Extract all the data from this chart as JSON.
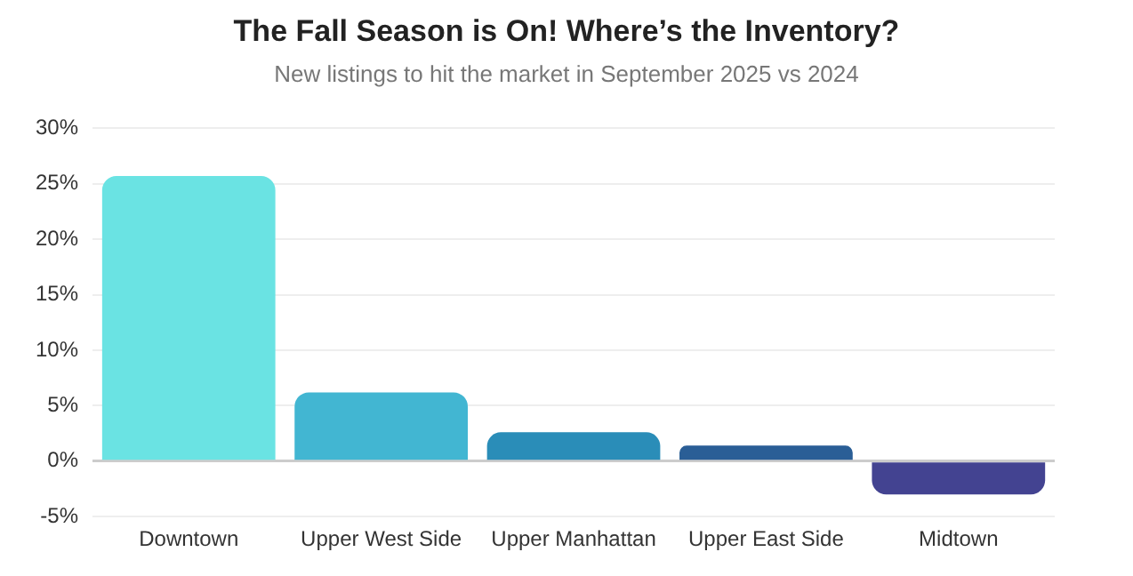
{
  "chart_data": {
    "type": "bar",
    "title": "The Fall Season is On! Where’s the Inventory?",
    "subtitle": "New listings to hit the market in September 2025 vs 2024",
    "categories": [
      "Downtown",
      "Upper West Side",
      "Upper Manhattan",
      "Upper East Side",
      "Midtown"
    ],
    "values": [
      25.7,
      6.2,
      2.6,
      1.4,
      -3.0
    ],
    "colors": [
      "#6ae3e3",
      "#42b6d2",
      "#2a8db8",
      "#2a5e96",
      "#434391"
    ],
    "ylim": [
      -5,
      30
    ],
    "yticks": [
      {
        "value": -5,
        "label": "-5%"
      },
      {
        "value": 0,
        "label": "0%"
      },
      {
        "value": 5,
        "label": "5%"
      },
      {
        "value": 10,
        "label": "10%"
      },
      {
        "value": 15,
        "label": "15%"
      },
      {
        "value": 20,
        "label": "20%"
      },
      {
        "value": 25,
        "label": "25%"
      },
      {
        "value": 30,
        "label": "30%"
      }
    ],
    "grid": "y",
    "legend": false
  }
}
